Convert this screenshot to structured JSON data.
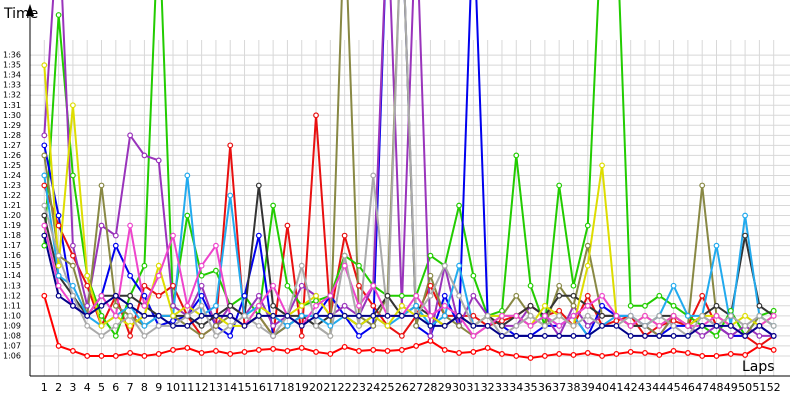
{
  "chart_data": {
    "type": "line",
    "y_label": "Time",
    "x_label": "Laps",
    "x": [
      1,
      2,
      3,
      4,
      5,
      6,
      7,
      8,
      9,
      10,
      11,
      12,
      13,
      14,
      15,
      16,
      17,
      18,
      19,
      20,
      21,
      22,
      23,
      24,
      25,
      26,
      27,
      28,
      29,
      30,
      31,
      32,
      33,
      34,
      35,
      36,
      37,
      38,
      39,
      40,
      41,
      42,
      43,
      44,
      45,
      46,
      47,
      48,
      49,
      50,
      51,
      52
    ],
    "xlim": [
      0,
      53
    ],
    "xticks": [
      1,
      2,
      3,
      4,
      5,
      6,
      7,
      8,
      9,
      10,
      11,
      12,
      13,
      14,
      15,
      16,
      17,
      18,
      19,
      20,
      21,
      22,
      23,
      24,
      25,
      26,
      27,
      28,
      29,
      30,
      31,
      32,
      33,
      34,
      35,
      36,
      37,
      38,
      39,
      40,
      41,
      42,
      43,
      44,
      45,
      46,
      47,
      48,
      49,
      50,
      51,
      52
    ],
    "ylim": [
      64,
      100
    ],
    "yticks": [
      {
        "value": 66,
        "label": "1:06"
      },
      {
        "value": 67,
        "label": "1:07"
      },
      {
        "value": 68,
        "label": "1:08"
      },
      {
        "value": 69,
        "label": "1:09"
      },
      {
        "value": 70,
        "label": "1:10"
      },
      {
        "value": 71,
        "label": "1:11"
      },
      {
        "value": 72,
        "label": "1:12"
      },
      {
        "value": 73,
        "label": "1:13"
      },
      {
        "value": 74,
        "label": "1:14"
      },
      {
        "value": 75,
        "label": "1:15"
      },
      {
        "value": 76,
        "label": "1:16"
      },
      {
        "value": 77,
        "label": "1:17"
      },
      {
        "value": 78,
        "label": "1:18"
      },
      {
        "value": 79,
        "label": "1:19"
      },
      {
        "value": 80,
        "label": "1:20"
      },
      {
        "value": 81,
        "label": "1:21"
      },
      {
        "value": 82,
        "label": "1:22"
      },
      {
        "value": 83,
        "label": "1:23"
      },
      {
        "value": 84,
        "label": "1:24"
      },
      {
        "value": 85,
        "label": "1:25"
      },
      {
        "value": 86,
        "label": "1:26"
      },
      {
        "value": 87,
        "label": "1:27"
      },
      {
        "value": 88,
        "label": "1:28"
      },
      {
        "value": 89,
        "label": "1:29"
      },
      {
        "value": 90,
        "label": "1:30"
      },
      {
        "value": 91,
        "label": "1:31"
      },
      {
        "value": 92,
        "label": "1:32"
      },
      {
        "value": 93,
        "label": "1:33"
      },
      {
        "value": 94,
        "label": "1:34"
      },
      {
        "value": 95,
        "label": "1:35"
      },
      {
        "value": 96,
        "label": "1:36"
      }
    ],
    "grid": true,
    "series": [
      {
        "color": "#ff0000",
        "values": [
          72,
          67,
          66.5,
          66,
          66,
          66,
          66.3,
          66,
          66.2,
          66.6,
          66.8,
          66.3,
          66.5,
          66.2,
          66.4,
          66.6,
          66.7,
          66.5,
          66.8,
          66.4,
          66.2,
          66.9,
          66.5,
          66.6,
          66.5,
          66.6,
          67,
          67.5,
          66.6,
          66.3,
          66.4,
          66.8,
          66.2,
          66,
          65.8,
          66,
          66.2,
          66.1,
          66.3,
          66,
          66.2,
          66.4,
          66.3,
          66.1,
          66.5,
          66.3,
          66,
          66,
          66.2,
          66.1,
          67,
          66.6
        ]
      },
      {
        "color": "#e81010",
        "values": [
          83,
          79,
          76,
          73,
          69,
          72,
          68,
          73,
          72,
          73,
          70,
          68,
          69,
          87,
          69,
          70,
          68,
          79,
          68,
          90,
          70,
          78,
          73,
          71,
          69,
          68,
          70,
          73,
          70,
          70,
          70,
          69,
          69.5,
          70,
          71,
          70,
          70.5,
          69,
          72,
          69,
          69.5,
          70,
          68,
          69,
          69.5,
          69,
          72,
          69,
          68,
          68,
          67,
          68
        ]
      },
      {
        "color": "#22cc00",
        "values": [
          77,
          100,
          84,
          74,
          70,
          68,
          72,
          75,
          110,
          71,
          80,
          74,
          74.5,
          71,
          72,
          70,
          81,
          73,
          71,
          71.5,
          72,
          76,
          75,
          73,
          72,
          72,
          72,
          76,
          75,
          81,
          74,
          70,
          70.5,
          86,
          73,
          69,
          83,
          73,
          79,
          110,
          110,
          71,
          71,
          72,
          71,
          70,
          69,
          68,
          70.5,
          68,
          70,
          70.5
        ]
      },
      {
        "color": "#0000ee",
        "values": [
          87,
          80,
          71,
          70,
          72,
          77,
          74,
          72,
          69,
          69.5,
          70,
          72,
          69,
          68,
          72,
          78,
          68,
          69,
          70,
          70,
          72,
          70,
          68,
          69,
          110,
          110,
          69,
          68,
          72,
          69,
          110,
          70,
          69,
          68,
          68,
          69,
          69,
          70,
          68,
          71,
          70,
          70,
          69,
          68,
          69,
          69,
          70,
          69,
          68,
          68,
          69,
          68
        ]
      },
      {
        "color": "#9933bb",
        "values": [
          88,
          110,
          77,
          71,
          79,
          78,
          88,
          86,
          85.5,
          71,
          70,
          73,
          69,
          71,
          70,
          72,
          69,
          70,
          73,
          72,
          70,
          71,
          70,
          73,
          110,
          71,
          110,
          68,
          75,
          69,
          72,
          70,
          69,
          69,
          71,
          70,
          68,
          71,
          69,
          70,
          70,
          69,
          69,
          68,
          70,
          69,
          68,
          69,
          68,
          69,
          68,
          68
        ]
      },
      {
        "color": "#888844",
        "values": [
          86,
          76,
          75,
          70,
          83,
          71,
          70,
          69,
          70,
          70,
          69,
          68,
          69,
          70,
          69,
          70,
          68,
          69,
          70,
          69,
          68,
          110,
          70,
          69,
          72,
          110,
          69,
          74,
          70,
          69,
          68,
          69,
          70,
          72,
          70,
          69,
          73,
          71,
          77,
          70,
          70,
          69,
          69,
          68,
          70,
          69,
          83,
          70,
          69,
          68,
          70,
          69
        ]
      },
      {
        "color": "#333333",
        "values": [
          80,
          74,
          72,
          70,
          72,
          72,
          72,
          71,
          70,
          70,
          70,
          69,
          70,
          71,
          70,
          83,
          71,
          70,
          70,
          69,
          70,
          70,
          69,
          70,
          72,
          70,
          71,
          70,
          69,
          70,
          69,
          70,
          69,
          70,
          71,
          70,
          72,
          72,
          71,
          70,
          70,
          69,
          69,
          70,
          70,
          69,
          70,
          71,
          70,
          78,
          71,
          70
        ]
      },
      {
        "color": "#22aaee",
        "values": [
          84,
          74,
          73,
          70,
          69,
          70,
          71,
          69,
          70,
          70,
          84,
          70,
          71,
          82,
          70,
          71,
          70,
          69,
          70,
          70,
          69,
          70,
          69,
          70,
          69,
          70,
          71,
          69,
          70,
          75,
          69,
          70,
          70,
          70,
          69,
          70,
          69,
          70,
          68,
          69,
          70,
          70,
          69,
          70,
          73,
          70,
          70,
          77,
          69,
          80,
          70,
          69
        ]
      },
      {
        "color": "#dddd00",
        "values": [
          95,
          75,
          91,
          74,
          69,
          70,
          69,
          70,
          75,
          70,
          71,
          70,
          70,
          69,
          69,
          71,
          70,
          70,
          71,
          72,
          70,
          70,
          69,
          70,
          69,
          71,
          70,
          70,
          69,
          70,
          69,
          70,
          70,
          70,
          69,
          71,
          70,
          69,
          75,
          85,
          70,
          69,
          70,
          69,
          70,
          69,
          70,
          70,
          69,
          70,
          69,
          70
        ]
      },
      {
        "color": "#ee44cc",
        "values": [
          79,
          73,
          71,
          70,
          72,
          70,
          79,
          71,
          74,
          78,
          71,
          75,
          77,
          70,
          69,
          71,
          73,
          70,
          69,
          71,
          72,
          75,
          71,
          73,
          70,
          70,
          72,
          70,
          71,
          70,
          68,
          69,
          70,
          70,
          69,
          70,
          69,
          70,
          71,
          72,
          70,
          69,
          70,
          69,
          70,
          69,
          69,
          70,
          69,
          68,
          69,
          70
        ]
      },
      {
        "color": "#aaaaaa",
        "values": [
          81,
          76,
          72,
          69,
          68,
          69,
          70,
          68,
          69,
          69,
          70,
          71,
          68,
          69,
          70,
          69,
          68,
          70,
          75,
          69,
          68,
          76,
          69,
          84,
          70,
          110,
          70,
          72,
          75,
          72,
          69,
          70,
          68,
          69,
          70,
          69,
          70,
          69,
          70,
          69,
          69,
          70,
          69,
          70,
          69,
          68,
          70,
          69,
          70,
          69,
          70,
          69
        ]
      },
      {
        "color": "#000088",
        "values": [
          78,
          72,
          71,
          70,
          71,
          72,
          71,
          70,
          70,
          69,
          69,
          70,
          70,
          70,
          69,
          70,
          70,
          70,
          69,
          70,
          70,
          70,
          70,
          70,
          70,
          70,
          70,
          69,
          69,
          70,
          69,
          69,
          68,
          68,
          68,
          68,
          68,
          68,
          68,
          69,
          69,
          68,
          68,
          68,
          68,
          68,
          69,
          69,
          69,
          68,
          69,
          68
        ]
      }
    ]
  }
}
